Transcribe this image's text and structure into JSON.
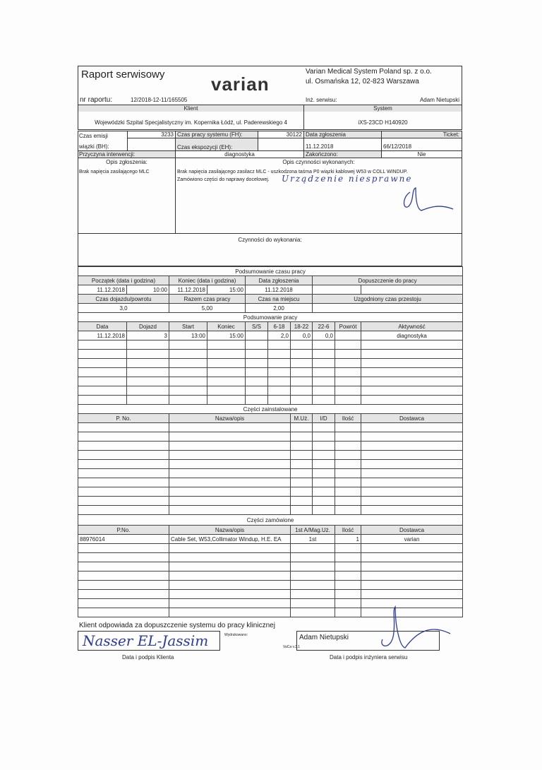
{
  "header": {
    "title": "Raport serwisowy",
    "logo": "varian",
    "company": "Varian Medical System Poland sp. z o.o.",
    "address": "ul. Osmańska 12, 02-823 Warszawa",
    "report_no_label": "nr raportu:",
    "report_no": "12/2018-12-11/165505",
    "engineer_label": "Inż. serwisu:",
    "engineer": "Adam Nietupski"
  },
  "client": {
    "label": "Klient",
    "value": "Wojewódzki Szpital Specjalistyczny im. Kopernika Łódź, ul. Paderewskiego 4"
  },
  "system": {
    "label": "System",
    "value": "iXS-23CD  H140920"
  },
  "info": {
    "beam_label1": "Czas emisji",
    "beam_label2": "wiązki (BH):",
    "beam_value": "3233",
    "fh_label": "Czas pracy systemu (FH):",
    "fh_value": "30122",
    "eh_label": "Czas ekspozycji (EH):",
    "eh_value": "",
    "report_date_label": "Data zgłoszenia",
    "report_date": "11.12.2018",
    "ticket_label": "Ticket:",
    "ticket": "66/12/2018",
    "reason_label": "Przyczyna interwencji:",
    "reason": "diagnostyka",
    "finished_label": "Zakończono:",
    "finished": "Nie"
  },
  "description": {
    "issue_label": "Opis zgłoszenia:",
    "issue": "Brak napięcia zasilającego MLC",
    "work_label": "Opis czynności wykonanych:",
    "work_line1": "Brak napięcia zasilającego zasilacz MLC - uszkodzona taśma P0 wiązki kablowej W53 w COLL WINDUP.",
    "work_line2": "Zamówiono części do naprawy docelowej.",
    "handwritten_note": "Urządzenie niesprawne",
    "todo_label": "Czynności do wykonania:"
  },
  "time_summary": {
    "title": "Podsumowanie czasu pracy",
    "start_label": "Początek (data i godzina)",
    "end_label": "Koniec (data i godzina)",
    "report_date_label": "Data zgłoszenia",
    "approval_label": "Dopuszczenie do pracy",
    "start_date": "11.12.2018",
    "start_time": "10:00",
    "end_date": "11.12.2018",
    "end_time": "15:00",
    "report_date": "11.12.2018",
    "travel_label": "Czas dojazdu/powrotu",
    "total_label": "Razem czas pracy",
    "onsite_label": "Czas na miejscu",
    "downtime_label": "Uzgodniony czas przestoju",
    "travel": "3,0",
    "total": "5,00",
    "onsite": "2,00"
  },
  "work_summary": {
    "title": "Podsumowanie pracy",
    "columns": [
      "Data",
      "Dojazd",
      "Start",
      "Koniec",
      "S/S",
      "6-18",
      "18-22",
      "22-6",
      "Powrót",
      "Aktywność"
    ],
    "rows": [
      [
        "11.12.2018",
        "3",
        "13:00",
        "15:00",
        "",
        "2,0",
        "0,0",
        "0,0",
        "",
        "diagnostyka"
      ]
    ]
  },
  "installed_parts": {
    "title": "Części zainstalowane",
    "columns": [
      "P. No.",
      "Nazwa/opis",
      "M.Uż.",
      "I/D",
      "Ilość",
      "Dostawca"
    ]
  },
  "ordered_parts": {
    "title": "Części zamówione",
    "columns": [
      "P.No.",
      "Nazwa/opis",
      "1st A/Mag.Uż.",
      "Ilość",
      "Dostawca"
    ],
    "rows": [
      [
        "88976014",
        "Cable Set, W53,Collimator Windup, H.E. EA",
        "1st",
        "1",
        "varian"
      ]
    ]
  },
  "footer": {
    "notice": "Klient odpowiada za dopuszczenie systemu do pracy klinicznej",
    "client_signature": "Nasser EL-Jassim",
    "printed_label": "Wydrukowano:",
    "version": "VaCa v.3.1",
    "engineer_name": "Adam Nietupski",
    "client_caption": "Data i podpis Klienta",
    "engineer_caption": "Data i podpis inżyniera serwisu"
  }
}
